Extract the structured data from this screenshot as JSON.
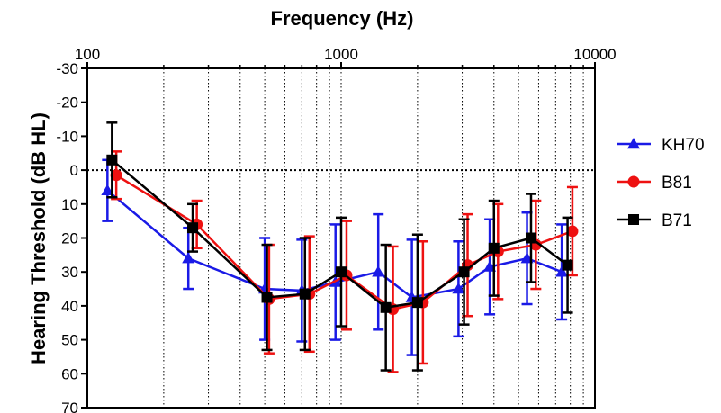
{
  "chart_data": {
    "type": "line",
    "title": "",
    "xlabel": "Frequency (Hz)",
    "ylabel": "Hearing Threshold (dB HL)",
    "x_scale": "log",
    "xlim": [
      100,
      10000
    ],
    "ylim": [
      -30,
      70
    ],
    "y_inverted": true,
    "x_ticks": [
      100,
      1000,
      10000
    ],
    "x_tick_labels": [
      "100",
      "1000",
      "10000"
    ],
    "y_ticks": [
      -30,
      -20,
      -10,
      0,
      10,
      20,
      30,
      40,
      50,
      60,
      70
    ],
    "y_tick_labels": [
      "-30",
      "-20",
      "-10",
      "0",
      "10",
      "20",
      "30",
      "40",
      "50",
      "60",
      "70"
    ],
    "grid": "vertical minor dotted",
    "reference_line": 0,
    "legend_position": "right",
    "series": [
      {
        "name": "KH70",
        "color": "#1a1ae6",
        "marker": "triangle",
        "x": [
          120,
          250,
          500,
          700,
          950,
          1400,
          1900,
          2900,
          3850,
          5400,
          7400
        ],
        "y": [
          6,
          26,
          35,
          35.5,
          33,
          30,
          37.5,
          35,
          28.5,
          26,
          30
        ],
        "err": [
          9,
          9,
          15,
          15,
          17,
          17,
          17,
          14,
          14,
          13.5,
          14
        ]
      },
      {
        "name": "B81",
        "color": "#ee1111",
        "marker": "circle",
        "x": [
          130,
          270,
          520,
          750,
          1050,
          1600,
          2100,
          3150,
          4150,
          5850,
          8150
        ],
        "y": [
          1.5,
          16,
          38,
          36.5,
          31,
          41,
          39,
          28,
          24,
          22,
          18
        ],
        "err": [
          7,
          7,
          16,
          17,
          16,
          18.5,
          18,
          15,
          14,
          13,
          13
        ]
      },
      {
        "name": "B71",
        "color": "#000000",
        "marker": "square",
        "x": [
          125,
          260,
          510,
          720,
          1000,
          1500,
          2000,
          3050,
          4000,
          5600,
          7800
        ],
        "y": [
          -3,
          17,
          37.5,
          36.5,
          30,
          40.5,
          39,
          30,
          23,
          20,
          28
        ],
        "err": [
          11,
          7,
          15.5,
          16.5,
          16,
          18.5,
          20,
          15.5,
          14,
          13,
          14
        ]
      }
    ]
  }
}
